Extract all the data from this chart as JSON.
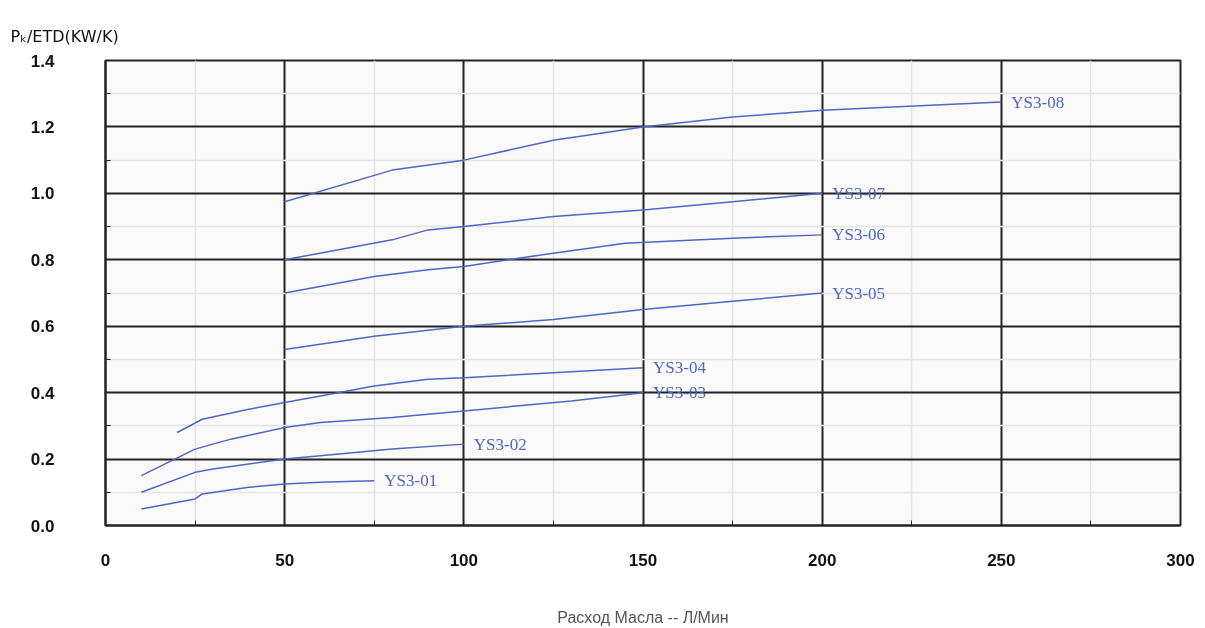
{
  "chart_data": {
    "type": "line",
    "ylabel": "Pₖ/ETD(KW/K)",
    "xlabel": "Расход Масла -- Л/Мин",
    "xlim": [
      0,
      300
    ],
    "xticks": [
      0,
      50,
      100,
      150,
      200,
      250,
      300
    ],
    "ylim": [
      0,
      1.4
    ],
    "yticks": [
      {
        "value": 0,
        "label": "0.0"
      },
      {
        "value": 0.2,
        "label": "0.2"
      },
      {
        "value": 0.4,
        "label": "0.4"
      },
      {
        "value": 0.6,
        "label": "0.6"
      },
      {
        "value": 0.8,
        "label": "0.8"
      },
      {
        "value": 1.0,
        "label": "1.0"
      },
      {
        "value": 1.2,
        "label": "1.2"
      },
      {
        "value": 1.4,
        "label": "1.4"
      }
    ],
    "grid": true,
    "marker": "none",
    "line_style": "solid",
    "series": [
      {
        "name": "YS3-01",
        "color": "#4f66c4",
        "x": [
          10,
          25,
          27,
          40,
          50,
          60,
          75
        ],
        "values": [
          0.05,
          0.08,
          0.095,
          0.115,
          0.125,
          0.13,
          0.135
        ]
      },
      {
        "name": "YS3-02",
        "color": "#4f66c4",
        "x": [
          10,
          25,
          30,
          50,
          60,
          80,
          100
        ],
        "values": [
          0.1,
          0.16,
          0.17,
          0.2,
          0.21,
          0.23,
          0.245
        ]
      },
      {
        "name": "YS3-03",
        "color": "#4f66c4",
        "x": [
          10,
          25,
          35,
          50,
          60,
          80,
          100,
          130,
          150
        ],
        "values": [
          0.15,
          0.23,
          0.26,
          0.295,
          0.31,
          0.325,
          0.345,
          0.375,
          0.4
        ]
      },
      {
        "name": "YS3-04",
        "color": "#4f66c4",
        "x": [
          20,
          27,
          40,
          50,
          60,
          75,
          90,
          100,
          125,
          150
        ],
        "values": [
          0.28,
          0.32,
          0.35,
          0.37,
          0.39,
          0.42,
          0.44,
          0.445,
          0.46,
          0.475
        ]
      },
      {
        "name": "YS3-05",
        "color": "#4f66c4",
        "x": [
          50,
          75,
          100,
          125,
          150,
          175,
          200
        ],
        "values": [
          0.53,
          0.57,
          0.6,
          0.62,
          0.65,
          0.675,
          0.7
        ]
      },
      {
        "name": "YS3-06",
        "color": "#4f66c4",
        "x": [
          50,
          75,
          90,
          100,
          125,
          145,
          175,
          200
        ],
        "values": [
          0.7,
          0.75,
          0.77,
          0.78,
          0.82,
          0.85,
          0.865,
          0.875
        ]
      },
      {
        "name": "YS3-07",
        "color": "#4f66c4",
        "x": [
          50,
          80,
          90,
          100,
          125,
          150,
          175,
          200
        ],
        "values": [
          0.8,
          0.86,
          0.89,
          0.9,
          0.93,
          0.95,
          0.975,
          1.0
        ]
      },
      {
        "name": "YS3-08",
        "color": "#4f66c4",
        "x": [
          50,
          80,
          100,
          125,
          150,
          175,
          200,
          250
        ],
        "values": [
          0.975,
          1.07,
          1.1,
          1.16,
          1.2,
          1.23,
          1.25,
          1.275
        ]
      }
    ]
  }
}
